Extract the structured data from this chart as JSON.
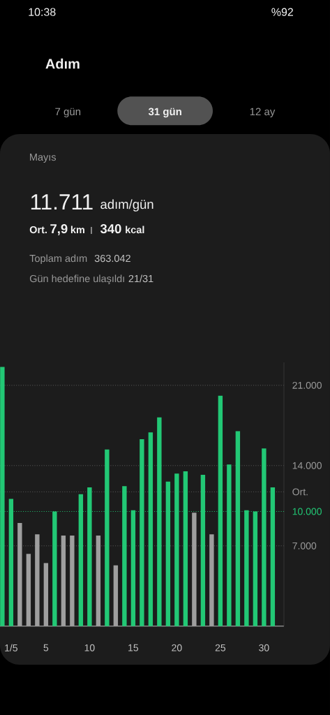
{
  "chart_data": {
    "type": "bar",
    "title": "Adım",
    "subtitle": "Mayıs",
    "categories": [
      null,
      "1/5",
      null,
      null,
      null,
      "5",
      null,
      null,
      null,
      null,
      "10",
      null,
      null,
      null,
      null,
      "15",
      null,
      null,
      null,
      null,
      "20",
      null,
      null,
      null,
      null,
      "25",
      null,
      null,
      null,
      null,
      "30",
      null
    ],
    "values": [
      22600,
      11100,
      9000,
      6300,
      8000,
      5500,
      10000,
      7900,
      7900,
      11500,
      12100,
      7900,
      15400,
      5300,
      12200,
      10100,
      16300,
      16900,
      18200,
      12600,
      13300,
      13500,
      9900,
      13200,
      8000,
      20100,
      14100,
      17000,
      10100,
      10000,
      15500,
      12100
    ],
    "colors": [
      "#22c875",
      "#22c875",
      "#9e9e9e",
      "#9e9e9e",
      "#9e9e9e",
      "#9e9e9e",
      "#22c875",
      "#9e9e9e",
      "#9e9e9e",
      "#22c875",
      "#22c875",
      "#9e9e9e",
      "#22c875",
      "#9e9e9e",
      "#22c875",
      "#22c875",
      "#22c875",
      "#22c875",
      "#22c875",
      "#22c875",
      "#22c875",
      "#22c875",
      "#9e9e9e",
      "#22c875",
      "#9e9e9e",
      "#22c875",
      "#22c875",
      "#22c875",
      "#22c875",
      "#22c875",
      "#22c875",
      "#22c875"
    ],
    "ylim": [
      0,
      23000
    ],
    "yticks": [
      {
        "value": 7000,
        "label": "7.000"
      },
      {
        "value": 14000,
        "label": "14.000"
      },
      {
        "value": 21000,
        "label": "21.000"
      }
    ],
    "grid": "y",
    "ref_lines": [
      {
        "axis": "y",
        "value": 11711,
        "label": "Ort.",
        "line_style": "dotted"
      },
      {
        "axis": "y",
        "value": 10000,
        "label": "10.000",
        "color": "#22c875",
        "line_style": "dotted"
      }
    ],
    "annotations": [
      "10:38",
      "%92",
      "7 gün",
      "31 gün",
      "12 ay",
      "11.711",
      "adım/gün",
      "Ort.",
      "7,9",
      "km",
      "340",
      "kcal",
      "Toplam adım",
      "363.042",
      "Gün hedefine ulaşıldı",
      "21/31"
    ]
  }
}
